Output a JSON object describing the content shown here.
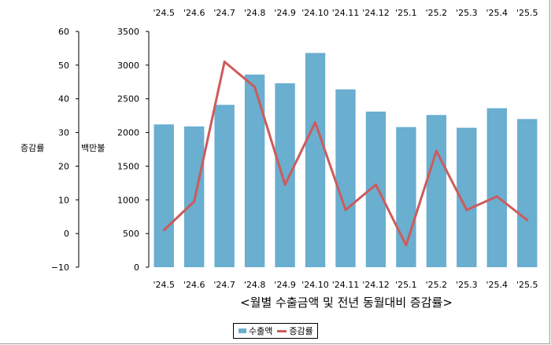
{
  "chart_data": {
    "type": "bar+line",
    "caption": "<월별 수출금액 및 전년 동월대비 증감률>",
    "categories": [
      "'24.5",
      "'24.6",
      "'24.7",
      "'24.8",
      "'24.9",
      "'24.10",
      "'24.11",
      "'24.12",
      "'25.1",
      "'25.2",
      "'25.3",
      "'25.4",
      "'25.5"
    ],
    "left_axis": {
      "label": "증감률",
      "ylim": [
        -10,
        60
      ],
      "ticks": [
        60,
        50,
        40,
        30,
        20,
        10,
        0,
        -10
      ]
    },
    "right_axis": {
      "label": "백만불",
      "ylim": [
        0,
        3500
      ],
      "ticks": [
        3500,
        3000,
        2500,
        2000,
        1500,
        1000,
        500,
        0
      ]
    },
    "series": [
      {
        "name": "수출액",
        "type": "bar",
        "axis": "right",
        "color": "#6aaed0",
        "values": [
          2120,
          2090,
          2410,
          2860,
          2730,
          3180,
          2640,
          2310,
          2080,
          2260,
          2070,
          2360,
          2200
        ]
      },
      {
        "name": "증감률",
        "type": "line",
        "axis": "left",
        "color": "#cd5b5b",
        "values": [
          1.0,
          9.5,
          51.0,
          43.5,
          14.5,
          33.0,
          7.0,
          14.5,
          -3.5,
          24.5,
          7.0,
          11.0,
          4.0
        ]
      }
    ],
    "grid": false,
    "legend": "bottom"
  }
}
